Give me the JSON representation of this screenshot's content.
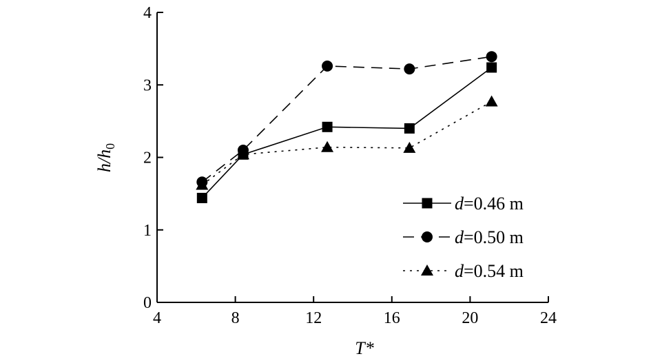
{
  "chart_data": {
    "type": "line",
    "xlabel": "T*",
    "ylabel": "h/h",
    "ylabel_subscript": "0",
    "xlim": [
      4,
      24
    ],
    "ylim": [
      0,
      4
    ],
    "xticks": [
      4,
      8,
      12,
      16,
      20,
      24
    ],
    "yticks": [
      0,
      1,
      2,
      3,
      4
    ],
    "grid": false,
    "legend_position": "lower-right",
    "series": [
      {
        "name": "d=0.46 m",
        "name_var": "d",
        "name_value": "=0.46 m",
        "x": [
          6.3,
          8.4,
          12.7,
          16.9,
          21.1
        ],
        "y": [
          1.44,
          2.04,
          2.42,
          2.4,
          3.24
        ],
        "marker": "square",
        "line_style": "solid",
        "color": "#000000"
      },
      {
        "name": "d=0.50 m",
        "name_var": "d",
        "name_value": "=0.50 m",
        "x": [
          6.3,
          8.4,
          12.7,
          16.9,
          21.1
        ],
        "y": [
          1.66,
          2.1,
          3.26,
          3.22,
          3.39
        ],
        "marker": "circle",
        "line_style": "dashed",
        "color": "#000000"
      },
      {
        "name": "d=0.54 m",
        "name_var": "d",
        "name_value": "=0.54 m",
        "x": [
          6.3,
          8.4,
          12.7,
          16.9,
          21.1
        ],
        "y": [
          1.62,
          2.04,
          2.14,
          2.13,
          2.77
        ],
        "marker": "triangle",
        "line_style": "dotted",
        "color": "#000000"
      }
    ]
  }
}
